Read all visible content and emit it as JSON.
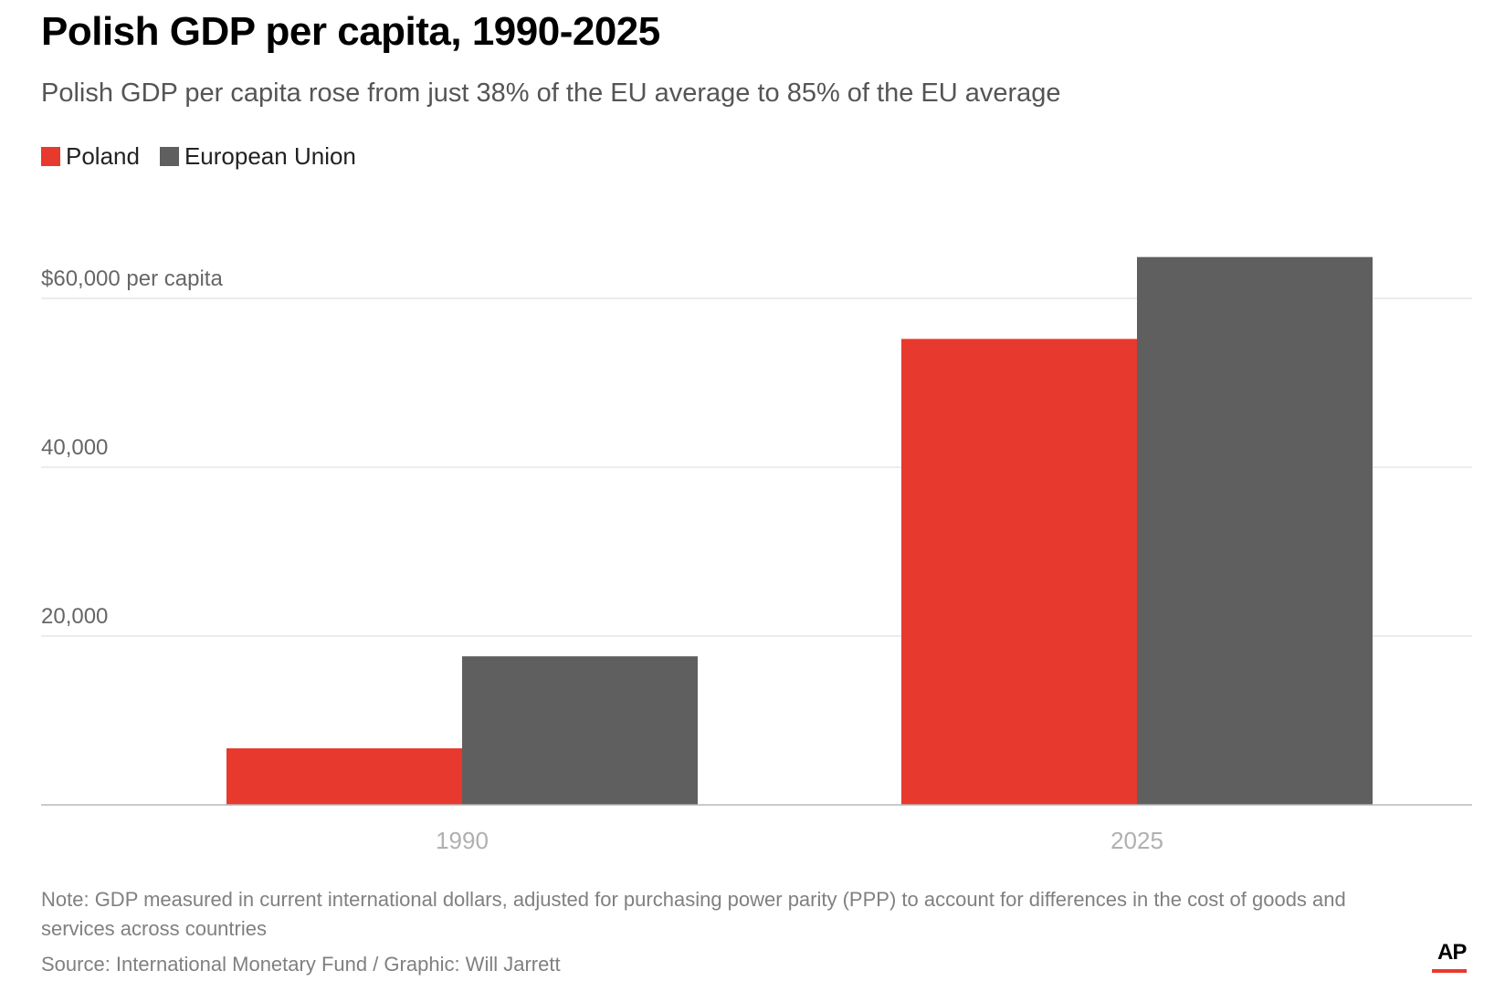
{
  "header": {
    "title": "Polish GDP per capita, 1990-2025",
    "subtitle": "Polish GDP per capita rose from just 38% of the EU average to 85% of the EU average"
  },
  "legend": [
    {
      "label": "Poland",
      "color": "#e8392e"
    },
    {
      "label": "European Union",
      "color": "#5f5f5f"
    }
  ],
  "footer": {
    "note": "Note: GDP measured in current international dollars, adjusted for purchasing power parity (PPP) to account for differences in the cost of goods and services across countries",
    "source": "Source: International Monetary Fund / Graphic: Will Jarrett",
    "logo": "AP"
  },
  "chart_data": {
    "type": "bar",
    "title": "Polish GDP per capita, 1990-2025",
    "subtitle": "Polish GDP per capita rose from just 38% of the EU average to 85% of the EU average",
    "categories": [
      "1990",
      "2025"
    ],
    "series": [
      {
        "name": "Poland",
        "color": "#e8392e",
        "values": [
          6700,
          55200
        ]
      },
      {
        "name": "European Union",
        "color": "#5f5f5f",
        "values": [
          17600,
          64900
        ]
      }
    ],
    "yticks": [
      {
        "value": 20000,
        "label": "20,000"
      },
      {
        "value": 40000,
        "label": "40,000"
      },
      {
        "value": 60000,
        "label": "$60,000 per capita"
      }
    ],
    "ylim": [
      0,
      70000
    ],
    "xlabel": "",
    "ylabel": "",
    "grid": true,
    "legend_position": "top-left"
  }
}
